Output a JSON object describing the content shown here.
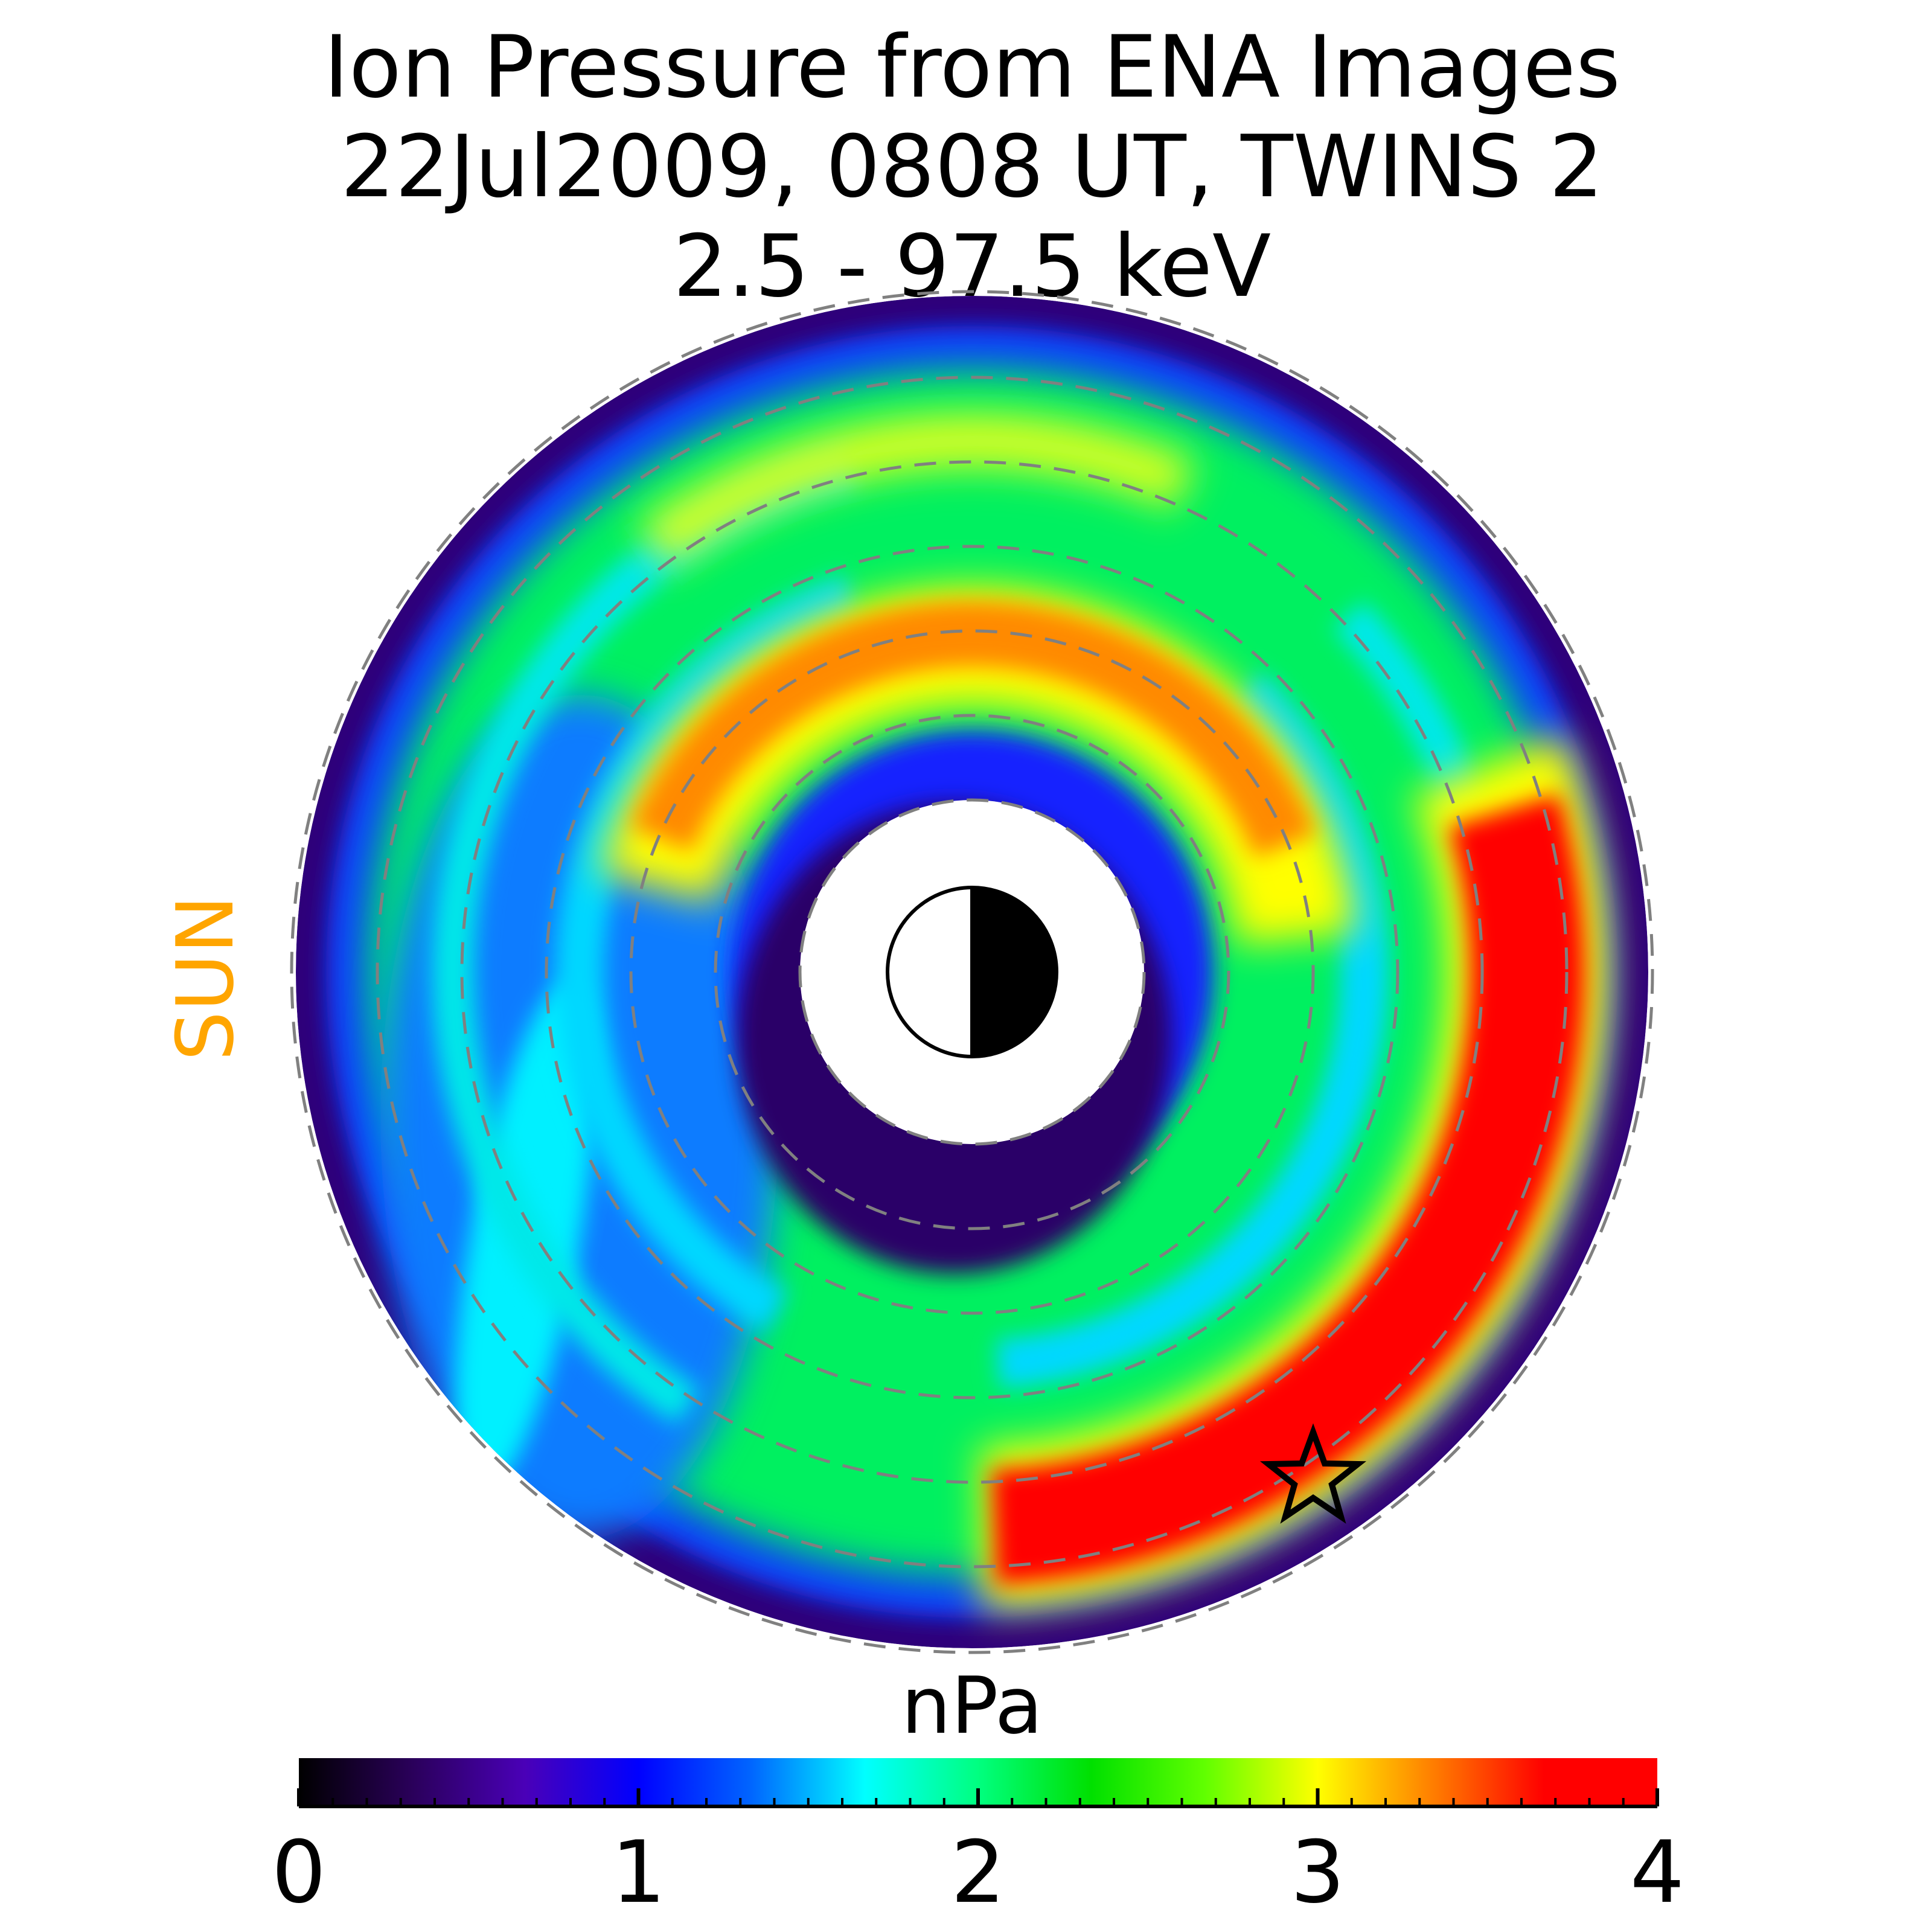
{
  "chart_data": {
    "type": "heatmap",
    "title_lines": [
      "Ion Pressure from  ENA Images",
      "22Jul2009, 0808 UT,  TWINS 2",
      "2.5 - 97.5 keV"
    ],
    "colorbar": {
      "label": "nPa",
      "range": [
        0,
        4
      ],
      "ticks": [
        "0",
        "1",
        "2",
        "3",
        "4"
      ],
      "colormap": [
        "#000000",
        "#2a005a",
        "#4a00b8",
        "#0000ff",
        "#0066ff",
        "#00ffff",
        "#00ff80",
        "#00e000",
        "#60ff00",
        "#ffff00",
        "#ff8000",
        "#ff0000",
        "#ff0000"
      ]
    },
    "sun_label": "SUN",
    "sun_color": "#ffa500",
    "grid": "dashed concentric circles",
    "polar_map": {
      "description_markers": [
        "earth-icon",
        "star-icon"
      ],
      "pressure_regions": [
        {
          "region": "outer rim",
          "value": 0.6
        },
        {
          "region": "dawn/midnight band",
          "value": 1.3
        },
        {
          "region": "main ring",
          "value": 2.0
        },
        {
          "region": "inner arc (dusk)",
          "value": 3.3
        },
        {
          "region": "ring current peak (post-midnight)",
          "value": 4.0
        },
        {
          "region": "inner edge",
          "value": 0.3
        }
      ]
    }
  }
}
